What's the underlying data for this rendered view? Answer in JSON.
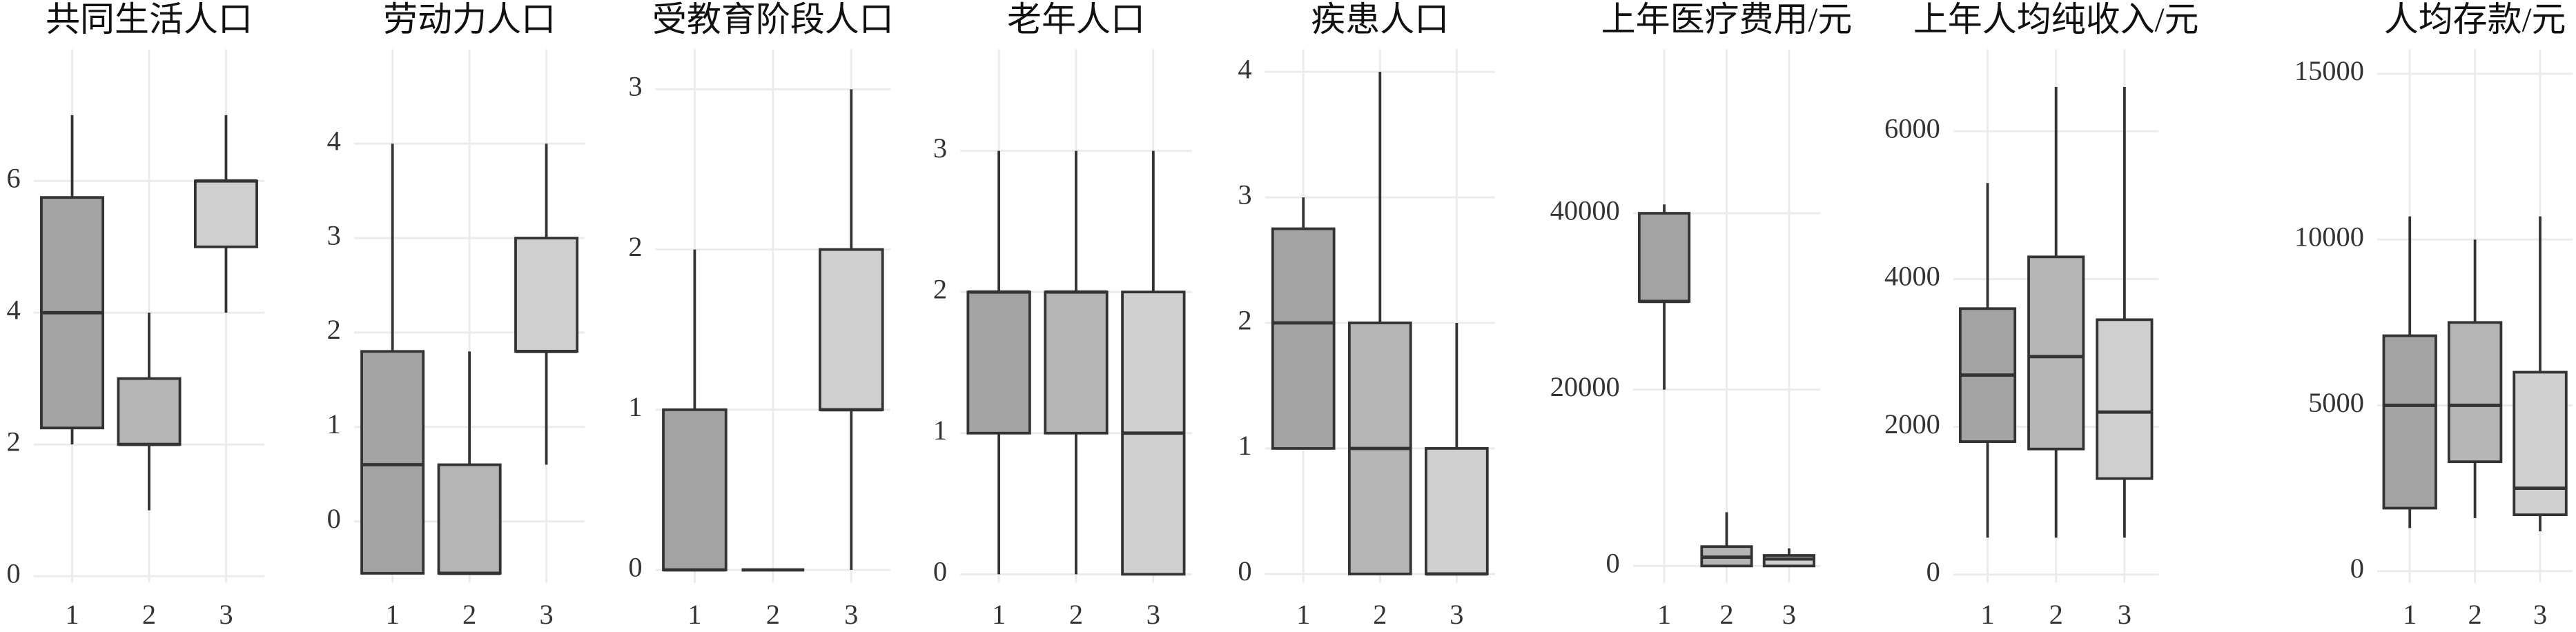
{
  "chart_data": [
    {
      "type": "box",
      "title": "共同生活人口",
      "categories": [
        "1",
        "2",
        "3"
      ],
      "colors": [
        "#a3a3a3",
        "#b5b5b5",
        "#cfcfcf"
      ],
      "grid": true,
      "ylim": [
        -0.1,
        8
      ],
      "yticks": [
        0,
        2,
        4,
        6
      ],
      "boxes": [
        {
          "min": 2,
          "q1": 2.25,
          "median": 4,
          "q3": 5.75,
          "max": 7
        },
        {
          "min": 1,
          "q1": 2,
          "median": 2,
          "q3": 3,
          "max": 4
        },
        {
          "min": 4,
          "q1": 5,
          "median": 6,
          "q3": 6,
          "max": 7
        }
      ]
    },
    {
      "type": "box",
      "title": "劳动力人口",
      "categories": [
        "1",
        "2",
        "3"
      ],
      "colors": [
        "#a3a3a3",
        "#b5b5b5",
        "#cfcfcf"
      ],
      "grid": true,
      "ylim": [
        -0.65,
        5
      ],
      "yticks": [
        0,
        1,
        2,
        3,
        4
      ],
      "boxes": [
        {
          "min": -0.55,
          "q1": -0.55,
          "median": 0.6,
          "q3": 1.8,
          "max": 4
        },
        {
          "min": -0.55,
          "q1": -0.55,
          "median": -0.55,
          "q3": 0.6,
          "max": 1.8
        },
        {
          "min": 0.6,
          "q1": 1.8,
          "median": 1.8,
          "q3": 3,
          "max": 4
        }
      ]
    },
    {
      "type": "box",
      "title": "受教育阶段人口",
      "categories": [
        "1",
        "2",
        "3"
      ],
      "colors": [
        "#a3a3a3",
        "#b5b5b5",
        "#cfcfcf"
      ],
      "grid": true,
      "ylim": [
        -0.08,
        3.25
      ],
      "yticks": [
        0,
        1,
        2,
        3
      ],
      "boxes": [
        {
          "min": 0,
          "q1": 0,
          "median": 0,
          "q3": 1,
          "max": 2
        },
        {
          "min": 0,
          "q1": 0,
          "median": 0,
          "q3": 0,
          "max": 0
        },
        {
          "min": 0,
          "q1": 1,
          "median": 1,
          "q3": 2,
          "max": 3
        }
      ]
    },
    {
      "type": "box",
      "title": "老年人口",
      "categories": [
        "1",
        "2",
        "3"
      ],
      "colors": [
        "#a3a3a3",
        "#b5b5b5",
        "#cfcfcf"
      ],
      "grid": true,
      "ylim": [
        -0.06,
        3.72
      ],
      "yticks": [
        0,
        1,
        2,
        3
      ],
      "boxes": [
        {
          "min": 0,
          "q1": 1,
          "median": 2,
          "q3": 2,
          "max": 3
        },
        {
          "min": 0,
          "q1": 1,
          "median": 2,
          "q3": 2,
          "max": 3
        },
        {
          "min": 0,
          "q1": 0,
          "median": 1,
          "q3": 2,
          "max": 3
        }
      ]
    },
    {
      "type": "box",
      "title": "疾患人口",
      "categories": [
        "1",
        "2",
        "3"
      ],
      "colors": [
        "#a3a3a3",
        "#b5b5b5",
        "#cfcfcf"
      ],
      "grid": true,
      "ylim": [
        -0.07,
        4.18
      ],
      "yticks": [
        0,
        1,
        2,
        3,
        4
      ],
      "boxes": [
        {
          "min": 1,
          "q1": 1,
          "median": 2,
          "q3": 2.75,
          "max": 3
        },
        {
          "min": 0,
          "q1": 0,
          "median": 1,
          "q3": 2,
          "max": 4
        },
        {
          "min": 0,
          "q1": 0,
          "median": 0,
          "q3": 1,
          "max": 2
        }
      ]
    },
    {
      "type": "box",
      "title": "上年医疗费用/元",
      "categories": [
        "1",
        "2",
        "3"
      ],
      "colors": [
        "#a3a3a3",
        "#b5b5b5",
        "#cfcfcf"
      ],
      "grid": true,
      "ylim": [
        -1900,
        58600
      ],
      "yticks": [
        0,
        20000,
        40000
      ],
      "boxes": [
        {
          "min": 20000,
          "q1": 30000,
          "median": 30000,
          "q3": 40000,
          "max": 41000
        },
        {
          "min": 0,
          "q1": 0,
          "median": 1000,
          "q3": 2200,
          "max": 6100
        },
        {
          "min": 0,
          "q1": 0,
          "median": 800,
          "q3": 1200,
          "max": 2000
        }
      ]
    },
    {
      "type": "box",
      "title": "上年人均纯收入/元",
      "categories": [
        "1",
        "2",
        "3"
      ],
      "colors": [
        "#a3a3a3",
        "#b5b5b5",
        "#cfcfcf"
      ],
      "grid": true,
      "ylim": [
        -110,
        7110
      ],
      "yticks": [
        0,
        2000,
        4000,
        6000
      ],
      "boxes": [
        {
          "min": 500,
          "q1": 1800,
          "median": 2700,
          "q3": 3600,
          "max": 5300
        },
        {
          "min": 500,
          "q1": 1700,
          "median": 2950,
          "q3": 4300,
          "max": 6600
        },
        {
          "min": 500,
          "q1": 1300,
          "median": 2200,
          "q3": 3450,
          "max": 6600
        }
      ]
    },
    {
      "type": "box",
      "title": "人均存款/元",
      "categories": [
        "1",
        "2",
        "3"
      ],
      "colors": [
        "#a3a3a3",
        "#b5b5b5",
        "#cfcfcf"
      ],
      "grid": true,
      "ylim": [
        -350,
        15740
      ],
      "yticks": [
        0,
        5000,
        10000,
        15000
      ],
      "boxes": [
        {
          "min": 1300,
          "q1": 1900,
          "median": 5000,
          "q3": 7100,
          "max": 10700
        },
        {
          "min": 1600,
          "q1": 3300,
          "median": 5000,
          "q3": 7500,
          "max": 10000
        },
        {
          "min": 1200,
          "q1": 1700,
          "median": 2500,
          "q3": 6000,
          "max": 10700
        }
      ]
    }
  ]
}
